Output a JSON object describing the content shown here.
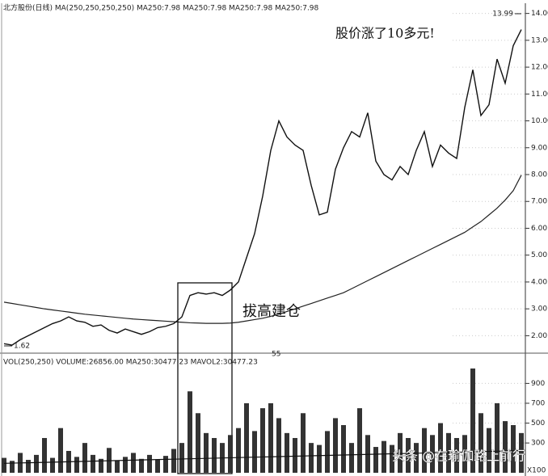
{
  "chart_data": [
    {
      "type": "line",
      "header": "北方股份(日线) MA(250,250,250,250) MA250:7.98 MA250:7.98 MA250:7.98 MA250:7.98",
      "annotations": [
        "股价涨了10多元!",
        "拔高建仓",
        "55"
      ],
      "high": 13.99,
      "low": 1.62,
      "color": "#111111",
      "ma_color": "#222222",
      "categories": [
        null,
        null,
        null,
        null,
        null,
        null,
        null,
        null,
        null,
        null,
        null,
        null,
        null,
        null,
        null,
        null,
        null,
        null,
        null,
        null,
        null,
        null,
        null,
        null,
        null,
        null,
        null,
        null,
        null,
        null,
        null,
        null,
        null,
        null,
        null,
        null,
        null,
        null,
        null,
        null,
        null,
        null,
        null,
        null,
        null,
        null,
        null,
        null,
        null,
        null,
        null,
        null,
        null,
        null,
        null,
        null,
        null,
        null,
        null,
        null,
        null,
        null,
        null,
        null,
        null
      ],
      "values": [
        1.7,
        1.65,
        1.85,
        2.0,
        2.15,
        2.3,
        2.45,
        2.55,
        2.7,
        2.55,
        2.5,
        2.35,
        2.4,
        2.2,
        2.1,
        2.25,
        2.15,
        2.05,
        2.15,
        2.3,
        2.35,
        2.45,
        2.7,
        3.5,
        3.6,
        3.55,
        3.6,
        3.5,
        3.7,
        4.0,
        4.9,
        5.8,
        7.2,
        8.9,
        10.0,
        9.4,
        9.1,
        8.9,
        7.6,
        6.5,
        6.6,
        8.2,
        9.0,
        9.6,
        9.4,
        10.3,
        8.5,
        8.0,
        7.8,
        8.3,
        8.0,
        8.9,
        9.6,
        8.3,
        9.1,
        8.8,
        8.6,
        10.5,
        11.9,
        10.2,
        10.6,
        12.3,
        11.4,
        12.8,
        13.4
      ],
      "ma_values": [
        3.25,
        3.2,
        3.15,
        3.1,
        3.05,
        3.0,
        2.96,
        2.92,
        2.88,
        2.84,
        2.8,
        2.77,
        2.74,
        2.71,
        2.68,
        2.65,
        2.62,
        2.6,
        2.58,
        2.56,
        2.54,
        2.52,
        2.5,
        2.48,
        2.47,
        2.46,
        2.46,
        2.46,
        2.47,
        2.5,
        2.55,
        2.6,
        2.65,
        2.72,
        2.8,
        2.9,
        3.0,
        3.1,
        3.2,
        3.3,
        3.4,
        3.5,
        3.6,
        3.75,
        3.9,
        4.05,
        4.2,
        4.35,
        4.5,
        4.65,
        4.8,
        4.95,
        5.1,
        5.25,
        5.4,
        5.55,
        5.7,
        5.85,
        6.05,
        6.25,
        6.5,
        6.75,
        7.05,
        7.4,
        7.98
      ],
      "ylim": [
        1.5,
        14.35
      ],
      "yticks": [
        {
          "value": 2,
          "label": "2.00"
        },
        {
          "value": 3,
          "label": "3.00"
        },
        {
          "value": 4,
          "label": "4.00"
        },
        {
          "value": 5,
          "label": "5.00"
        },
        {
          "value": 6,
          "label": "6.00"
        },
        {
          "value": 7,
          "label": "7.00"
        },
        {
          "value": 8,
          "label": "8.00"
        },
        {
          "value": 9,
          "label": "9.00"
        },
        {
          "value": 10,
          "label": "10.00"
        },
        {
          "value": 11,
          "label": "11.00"
        },
        {
          "value": 12,
          "label": "12.00"
        },
        {
          "value": 13,
          "label": "13.00"
        },
        {
          "value": 14,
          "label": "14.00"
        }
      ]
    },
    {
      "type": "bar",
      "header": "VOL(250,250) VOLUME:26856.00 MA250:30477.23 MAVOL2:30477.23",
      "unit_label": "X100",
      "watermark": "头条 @在瑜伽路上前行",
      "color": "#333333",
      "ma_color": "#111111",
      "values": [
        150,
        120,
        200,
        130,
        180,
        350,
        150,
        450,
        220,
        160,
        300,
        180,
        140,
        250,
        120,
        160,
        200,
        140,
        180,
        130,
        170,
        240,
        300,
        820,
        600,
        400,
        350,
        300,
        380,
        450,
        700,
        420,
        650,
        700,
        550,
        400,
        350,
        600,
        300,
        280,
        420,
        550,
        480,
        300,
        650,
        380,
        260,
        320,
        280,
        400,
        350,
        300,
        450,
        380,
        500,
        400,
        350,
        380,
        1050,
        600,
        450,
        700,
        520,
        480,
        400
      ],
      "ma_values": [
        95,
        97,
        99,
        101,
        103,
        105,
        107,
        109,
        111,
        113,
        115,
        117,
        119,
        121,
        123,
        125,
        127,
        129,
        131,
        133,
        135,
        137,
        139,
        141,
        143,
        145,
        147,
        149,
        151,
        153,
        155,
        157,
        159,
        161,
        163,
        165,
        167,
        169,
        171,
        173,
        175,
        177,
        179,
        181,
        183,
        185,
        187,
        189,
        191,
        193,
        195,
        197,
        199,
        201,
        203,
        205,
        207,
        209,
        211,
        213,
        215,
        217,
        219,
        221,
        223
      ],
      "ylim": [
        0,
        1180
      ],
      "yticks": [
        300,
        500,
        700,
        900
      ]
    }
  ]
}
